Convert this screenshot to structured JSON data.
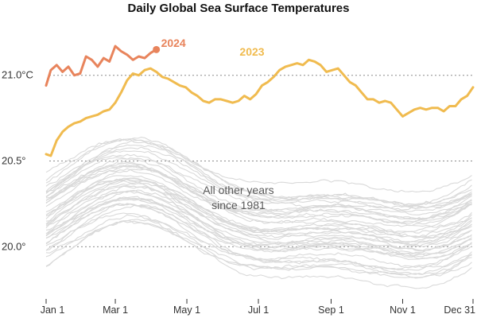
{
  "chart_data": {
    "type": "line",
    "title": "Daily Global Sea Surface Temperatures",
    "xlabel": "",
    "ylabel": "",
    "x_range_day_of_year": [
      1,
      365
    ],
    "ylim": [
      19.7,
      21.3
    ],
    "grid": true,
    "y_ticks": [
      {
        "value": 21.0,
        "label": "21.0°C"
      },
      {
        "value": 20.5,
        "label": "20.5°"
      },
      {
        "value": 20.0,
        "label": "20.0°"
      }
    ],
    "x_ticks": [
      {
        "day": 1,
        "label": "Jan 1"
      },
      {
        "day": 60,
        "label": "Mar 1"
      },
      {
        "day": 121,
        "label": "May 1"
      },
      {
        "day": 182,
        "label": "Jul 1"
      },
      {
        "day": 244,
        "label": "Sep 1"
      },
      {
        "day": 305,
        "label": "Nov 1"
      },
      {
        "day": 365,
        "label": "Dec 31"
      }
    ],
    "annotation": {
      "line1": "All other years",
      "line2": "since 1981",
      "x_day": 165,
      "y_value": 20.27
    },
    "series": [
      {
        "name": "2024",
        "color": "#e8845c",
        "x": [
          1,
          5,
          10,
          15,
          20,
          25,
          30,
          35,
          40,
          45,
          50,
          55,
          60,
          65,
          70,
          75,
          80,
          85,
          90,
          95
        ],
        "y": [
          20.94,
          21.03,
          21.06,
          21.02,
          21.05,
          21.0,
          21.01,
          21.11,
          21.09,
          21.05,
          21.1,
          21.08,
          21.17,
          21.14,
          21.12,
          21.09,
          21.11,
          21.1,
          21.13,
          21.15
        ],
        "end_marker": true
      },
      {
        "name": "2023",
        "color": "#f0bb4f",
        "x": [
          1,
          5,
          10,
          15,
          20,
          25,
          30,
          35,
          40,
          45,
          50,
          55,
          60,
          65,
          70,
          75,
          80,
          85,
          90,
          95,
          100,
          105,
          110,
          115,
          120,
          125,
          130,
          135,
          140,
          145,
          150,
          155,
          160,
          165,
          170,
          175,
          180,
          185,
          190,
          195,
          200,
          205,
          210,
          215,
          220,
          225,
          230,
          235,
          240,
          245,
          250,
          255,
          260,
          265,
          270,
          275,
          280,
          285,
          290,
          295,
          300,
          305,
          310,
          315,
          320,
          325,
          330,
          335,
          340,
          345,
          350,
          355,
          360,
          365
        ],
        "y": [
          20.54,
          20.53,
          20.62,
          20.67,
          20.7,
          20.72,
          20.73,
          20.75,
          20.76,
          20.77,
          20.79,
          20.8,
          20.84,
          20.9,
          20.97,
          21.01,
          21.0,
          21.03,
          21.04,
          21.02,
          20.99,
          20.98,
          20.96,
          20.94,
          20.93,
          20.9,
          20.88,
          20.85,
          20.84,
          20.86,
          20.86,
          20.85,
          20.84,
          20.85,
          20.88,
          20.86,
          20.89,
          20.94,
          20.96,
          20.99,
          21.03,
          21.05,
          21.06,
          21.07,
          21.06,
          21.09,
          21.08,
          21.06,
          21.02,
          21.03,
          21.04,
          21.0,
          20.96,
          20.94,
          20.9,
          20.86,
          20.86,
          20.84,
          20.85,
          20.84,
          20.8,
          20.76,
          20.78,
          20.8,
          20.81,
          20.8,
          20.81,
          20.81,
          20.79,
          20.82,
          20.82,
          20.86,
          20.88,
          20.93
        ]
      }
    ]
  }
}
